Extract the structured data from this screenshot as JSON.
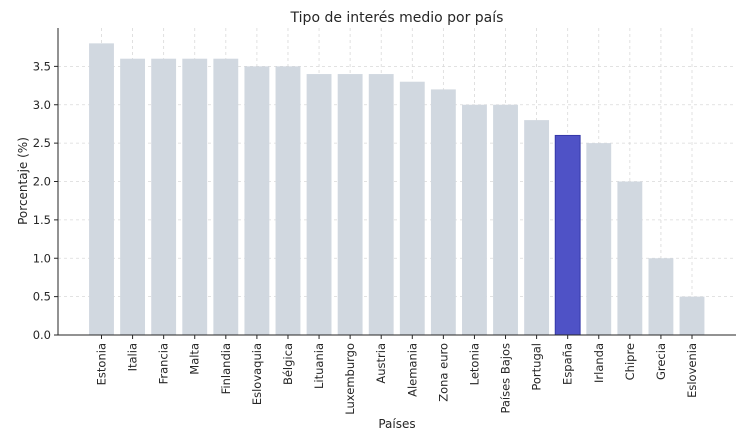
{
  "chart_data": {
    "type": "bar",
    "title": "Tipo de interés medio por país",
    "xlabel": "Países",
    "ylabel": "Porcentaje (%)",
    "categories": [
      "Estonia",
      "Italia",
      "Francia",
      "Malta",
      "Finlandia",
      "Eslovaquia",
      "Bélgica",
      "Lituania",
      "Luxemburgo",
      "Austria",
      "Alemania",
      "Zona euro",
      "Letonia",
      "Países Bajos",
      "Portugal",
      "España",
      "Irlanda",
      "Chipre",
      "Grecia",
      "Eslovenia"
    ],
    "values": [
      3.8,
      3.6,
      3.6,
      3.6,
      3.6,
      3.5,
      3.5,
      3.4,
      3.4,
      3.4,
      3.3,
      3.2,
      3.0,
      3.0,
      2.8,
      2.6,
      2.5,
      2.0,
      1.0,
      0.5
    ],
    "highlight": "España",
    "ylim": [
      0,
      4.0
    ],
    "yticks": [
      0.0,
      0.5,
      1.0,
      1.5,
      2.0,
      2.5,
      3.0,
      3.5
    ],
    "grid": true,
    "colors": {
      "bar": "#d1d8e0",
      "highlight": "#4f52c6",
      "highlight_edge": "#3538a8"
    }
  }
}
